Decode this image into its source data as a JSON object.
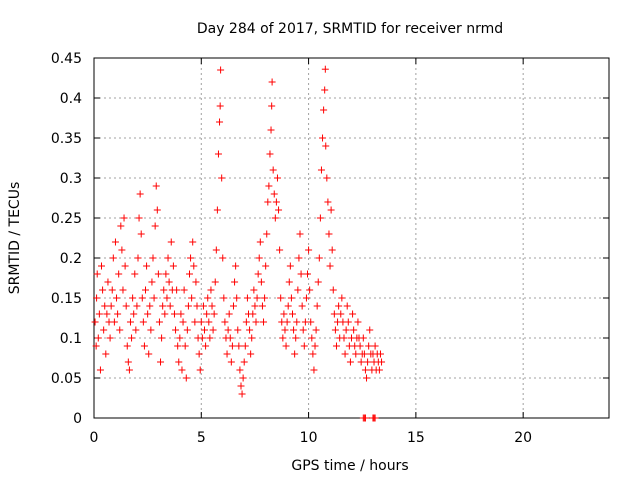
{
  "chart_data": {
    "type": "scatter",
    "title": "Day 284 of 2017, SRMTID for receiver nrmd",
    "xlabel": "GPS time / hours",
    "ylabel": "SRMTID / TECUs",
    "xlim": [
      0,
      24
    ],
    "ylim": [
      0,
      0.45
    ],
    "x_ticks": [
      0,
      5,
      10,
      15,
      20
    ],
    "x_tick_labels": [
      "0",
      "5",
      "10",
      "15",
      "20"
    ],
    "y_ticks": [
      0,
      0.05,
      0.1,
      0.15,
      0.2,
      0.25,
      0.3,
      0.35,
      0.4,
      0.45
    ],
    "y_tick_labels": [
      "0",
      "0.05",
      "0.1",
      "0.15",
      "0.2",
      "0.25",
      "0.3",
      "0.35",
      "0.4",
      "0.45"
    ],
    "grid": true,
    "marker": "+",
    "marker_color": "#ff0000",
    "series": [
      {
        "name": "SRMTID",
        "points": [
          [
            0.05,
            0.12
          ],
          [
            0.1,
            0.09
          ],
          [
            0.12,
            0.15
          ],
          [
            0.15,
            0.18
          ],
          [
            0.2,
            0.1
          ],
          [
            0.25,
            0.13
          ],
          [
            0.3,
            0.06
          ],
          [
            0.35,
            0.19
          ],
          [
            0.4,
            0.16
          ],
          [
            0.45,
            0.11
          ],
          [
            0.5,
            0.14
          ],
          [
            0.55,
            0.08
          ],
          [
            0.6,
            0.13
          ],
          [
            0.65,
            0.17
          ],
          [
            0.7,
            0.12
          ],
          [
            0.75,
            0.1
          ],
          [
            0.8,
            0.14
          ],
          [
            0.85,
            0.16
          ],
          [
            0.9,
            0.2
          ],
          [
            0.95,
            0.12
          ],
          [
            1.0,
            0.22
          ],
          [
            1.05,
            0.15
          ],
          [
            1.1,
            0.13
          ],
          [
            1.15,
            0.18
          ],
          [
            1.2,
            0.11
          ],
          [
            1.25,
            0.24
          ],
          [
            1.3,
            0.21
          ],
          [
            1.35,
            0.16
          ],
          [
            1.4,
            0.25
          ],
          [
            1.45,
            0.19
          ],
          [
            1.5,
            0.14
          ],
          [
            1.55,
            0.09
          ],
          [
            1.6,
            0.07
          ],
          [
            1.65,
            0.06
          ],
          [
            1.7,
            0.12
          ],
          [
            1.75,
            0.1
          ],
          [
            1.8,
            0.15
          ],
          [
            1.85,
            0.13
          ],
          [
            1.9,
            0.18
          ],
          [
            1.95,
            0.11
          ],
          [
            2.0,
            0.14
          ],
          [
            2.05,
            0.2
          ],
          [
            2.1,
            0.25
          ],
          [
            2.15,
            0.28
          ],
          [
            2.2,
            0.23
          ],
          [
            2.25,
            0.15
          ],
          [
            2.3,
            0.12
          ],
          [
            2.35,
            0.09
          ],
          [
            2.4,
            0.16
          ],
          [
            2.45,
            0.19
          ],
          [
            2.5,
            0.13
          ],
          [
            2.55,
            0.08
          ],
          [
            2.6,
            0.14
          ],
          [
            2.65,
            0.11
          ],
          [
            2.7,
            0.17
          ],
          [
            2.75,
            0.2
          ],
          [
            2.8,
            0.15
          ],
          [
            2.85,
            0.24
          ],
          [
            2.9,
            0.29
          ],
          [
            2.95,
            0.26
          ],
          [
            3.0,
            0.18
          ],
          [
            3.05,
            0.12
          ],
          [
            3.1,
            0.07
          ],
          [
            3.15,
            0.1
          ],
          [
            3.2,
            0.14
          ],
          [
            3.25,
            0.16
          ],
          [
            3.3,
            0.13
          ],
          [
            3.35,
            0.18
          ],
          [
            3.4,
            0.15
          ],
          [
            3.45,
            0.2
          ],
          [
            3.5,
            0.17
          ],
          [
            3.55,
            0.14
          ],
          [
            3.6,
            0.22
          ],
          [
            3.65,
            0.16
          ],
          [
            3.7,
            0.19
          ],
          [
            3.75,
            0.13
          ],
          [
            3.8,
            0.11
          ],
          [
            3.85,
            0.16
          ],
          [
            3.9,
            0.09
          ],
          [
            3.95,
            0.07
          ],
          [
            4.0,
            0.1
          ],
          [
            4.05,
            0.13
          ],
          [
            4.1,
            0.06
          ],
          [
            4.15,
            0.12
          ],
          [
            4.2,
            0.16
          ],
          [
            4.25,
            0.09
          ],
          [
            4.3,
            0.05
          ],
          [
            4.35,
            0.11
          ],
          [
            4.4,
            0.14
          ],
          [
            4.45,
            0.18
          ],
          [
            4.5,
            0.2
          ],
          [
            4.55,
            0.15
          ],
          [
            4.6,
            0.22
          ],
          [
            4.65,
            0.19
          ],
          [
            4.7,
            0.12
          ],
          [
            4.75,
            0.17
          ],
          [
            4.8,
            0.14
          ],
          [
            4.85,
            0.1
          ],
          [
            4.9,
            0.08
          ],
          [
            4.95,
            0.06
          ],
          [
            5.0,
            0.12
          ],
          [
            5.05,
            0.1
          ],
          [
            5.1,
            0.14
          ],
          [
            5.15,
            0.11
          ],
          [
            5.2,
            0.09
          ],
          [
            5.25,
            0.13
          ],
          [
            5.3,
            0.15
          ],
          [
            5.35,
            0.12
          ],
          [
            5.4,
            0.1
          ],
          [
            5.45,
            0.16
          ],
          [
            5.5,
            0.14
          ],
          [
            5.55,
            0.11
          ],
          [
            5.6,
            0.13
          ],
          [
            5.65,
            0.17
          ],
          [
            5.7,
            0.21
          ],
          [
            5.75,
            0.26
          ],
          [
            5.8,
            0.33
          ],
          [
            5.85,
            0.37
          ],
          [
            5.88,
            0.39
          ],
          [
            5.9,
            0.435
          ],
          [
            5.95,
            0.3
          ],
          [
            6.0,
            0.2
          ],
          [
            6.05,
            0.15
          ],
          [
            6.1,
            0.12
          ],
          [
            6.15,
            0.1
          ],
          [
            6.2,
            0.08
          ],
          [
            6.25,
            0.11
          ],
          [
            6.3,
            0.13
          ],
          [
            6.35,
            0.1
          ],
          [
            6.4,
            0.07
          ],
          [
            6.45,
            0.09
          ],
          [
            6.5,
            0.14
          ],
          [
            6.55,
            0.17
          ],
          [
            6.6,
            0.19
          ],
          [
            6.65,
            0.15
          ],
          [
            6.7,
            0.11
          ],
          [
            6.75,
            0.09
          ],
          [
            6.8,
            0.06
          ],
          [
            6.85,
            0.04
          ],
          [
            6.9,
            0.03
          ],
          [
            6.95,
            0.05
          ],
          [
            7.0,
            0.07
          ],
          [
            7.05,
            0.09
          ],
          [
            7.1,
            0.12
          ],
          [
            7.15,
            0.15
          ],
          [
            7.2,
            0.13
          ],
          [
            7.25,
            0.11
          ],
          [
            7.3,
            0.08
          ],
          [
            7.35,
            0.1
          ],
          [
            7.4,
            0.13
          ],
          [
            7.45,
            0.16
          ],
          [
            7.5,
            0.14
          ],
          [
            7.55,
            0.12
          ],
          [
            7.6,
            0.15
          ],
          [
            7.65,
            0.18
          ],
          [
            7.7,
            0.2
          ],
          [
            7.75,
            0.22
          ],
          [
            7.8,
            0.17
          ],
          [
            7.85,
            0.14
          ],
          [
            7.9,
            0.12
          ],
          [
            7.95,
            0.15
          ],
          [
            8.0,
            0.19
          ],
          [
            8.05,
            0.23
          ],
          [
            8.1,
            0.27
          ],
          [
            8.15,
            0.29
          ],
          [
            8.2,
            0.33
          ],
          [
            8.25,
            0.36
          ],
          [
            8.28,
            0.39
          ],
          [
            8.3,
            0.42
          ],
          [
            8.35,
            0.31
          ],
          [
            8.4,
            0.28
          ],
          [
            8.45,
            0.25
          ],
          [
            8.5,
            0.27
          ],
          [
            8.55,
            0.3
          ],
          [
            8.6,
            0.26
          ],
          [
            8.65,
            0.21
          ],
          [
            8.7,
            0.15
          ],
          [
            8.75,
            0.12
          ],
          [
            8.8,
            0.1
          ],
          [
            8.85,
            0.13
          ],
          [
            8.9,
            0.11
          ],
          [
            8.95,
            0.09
          ],
          [
            9.0,
            0.12
          ],
          [
            9.05,
            0.14
          ],
          [
            9.1,
            0.17
          ],
          [
            9.15,
            0.19
          ],
          [
            9.2,
            0.15
          ],
          [
            9.25,
            0.13
          ],
          [
            9.3,
            0.11
          ],
          [
            9.35,
            0.08
          ],
          [
            9.4,
            0.1
          ],
          [
            9.45,
            0.12
          ],
          [
            9.5,
            0.16
          ],
          [
            9.55,
            0.2
          ],
          [
            9.6,
            0.23
          ],
          [
            9.65,
            0.18
          ],
          [
            9.7,
            0.14
          ],
          [
            9.75,
            0.11
          ],
          [
            9.8,
            0.09
          ],
          [
            9.85,
            0.12
          ],
          [
            9.9,
            0.15
          ],
          [
            9.95,
            0.18
          ],
          [
            10.0,
            0.21
          ],
          [
            10.05,
            0.16
          ],
          [
            10.1,
            0.12
          ],
          [
            10.15,
            0.1
          ],
          [
            10.2,
            0.08
          ],
          [
            10.25,
            0.06
          ],
          [
            10.3,
            0.09
          ],
          [
            10.35,
            0.11
          ],
          [
            10.4,
            0.14
          ],
          [
            10.45,
            0.17
          ],
          [
            10.5,
            0.2
          ],
          [
            10.55,
            0.25
          ],
          [
            10.6,
            0.31
          ],
          [
            10.65,
            0.35
          ],
          [
            10.7,
            0.385
          ],
          [
            10.75,
            0.41
          ],
          [
            10.78,
            0.436
          ],
          [
            10.8,
            0.34
          ],
          [
            10.85,
            0.3
          ],
          [
            10.9,
            0.27
          ],
          [
            10.95,
            0.23
          ],
          [
            11.0,
            0.19
          ],
          [
            11.05,
            0.26
          ],
          [
            11.1,
            0.21
          ],
          [
            11.15,
            0.16
          ],
          [
            11.2,
            0.13
          ],
          [
            11.25,
            0.11
          ],
          [
            11.3,
            0.09
          ],
          [
            11.35,
            0.12
          ],
          [
            11.4,
            0.14
          ],
          [
            11.45,
            0.1
          ],
          [
            11.5,
            0.13
          ],
          [
            11.55,
            0.15
          ],
          [
            11.6,
            0.12
          ],
          [
            11.65,
            0.1
          ],
          [
            11.7,
            0.08
          ],
          [
            11.75,
            0.11
          ],
          [
            11.8,
            0.14
          ],
          [
            11.85,
            0.12
          ],
          [
            11.9,
            0.09
          ],
          [
            11.95,
            0.07
          ],
          [
            12.0,
            0.1
          ],
          [
            12.05,
            0.13
          ],
          [
            12.1,
            0.11
          ],
          [
            12.15,
            0.09
          ],
          [
            12.2,
            0.08
          ],
          [
            12.25,
            0.1
          ],
          [
            12.3,
            0.12
          ],
          [
            12.35,
            0.1
          ],
          [
            12.4,
            0.09
          ],
          [
            12.45,
            0.07
          ],
          [
            12.5,
            0.08
          ],
          [
            12.55,
            0.1
          ],
          [
            12.6,
            0.08
          ],
          [
            12.65,
            0.06
          ],
          [
            12.7,
            0.05
          ],
          [
            12.75,
            0.07
          ],
          [
            12.8,
            0.09
          ],
          [
            12.85,
            0.11
          ],
          [
            12.9,
            0.08
          ],
          [
            12.95,
            0.06
          ],
          [
            13.0,
            0.08
          ],
          [
            13.05,
            0.07
          ],
          [
            13.1,
            0.09
          ],
          [
            13.15,
            0.06
          ],
          [
            13.2,
            0.08
          ],
          [
            13.25,
            0.07
          ],
          [
            13.3,
            0.06
          ],
          [
            13.35,
            0.08
          ],
          [
            13.4,
            0.07
          ],
          [
            12.55,
            0.0
          ],
          [
            12.6,
            0.0
          ],
          [
            12.65,
            0.0
          ],
          [
            13.0,
            0.0
          ],
          [
            13.05,
            0.0
          ],
          [
            13.1,
            0.0
          ]
        ]
      }
    ]
  }
}
